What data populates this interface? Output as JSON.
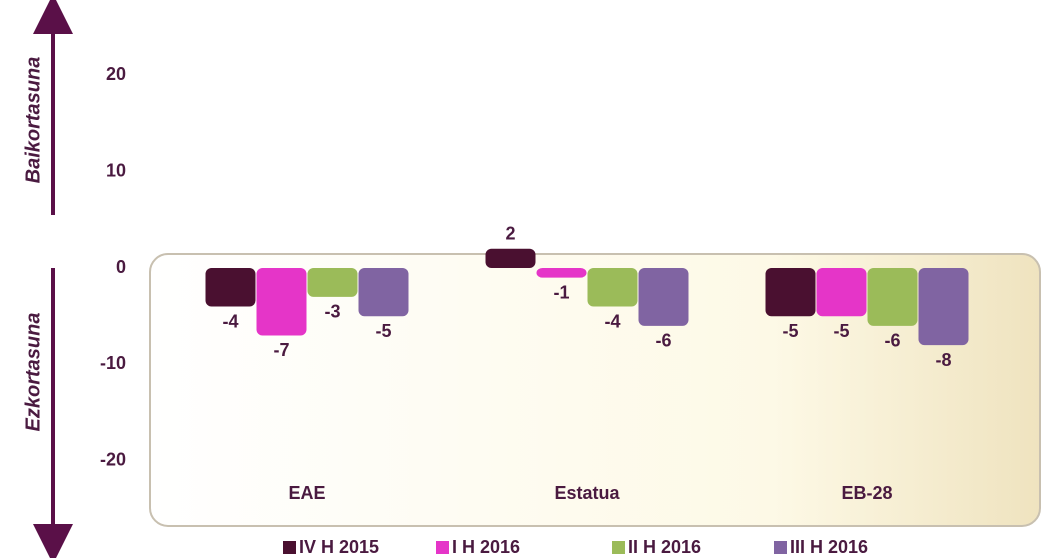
{
  "chart_data": {
    "type": "bar",
    "annotations": [
      "Baikortasuna",
      "Ezkortasuna"
    ],
    "categories": [
      "EAE",
      "Estatua",
      "EB-28"
    ],
    "series": [
      {
        "name": "IV H 2015",
        "color": "#4a1030",
        "values": [
          -4,
          2,
          -5
        ]
      },
      {
        "name": "I H 2016",
        "color": "#e535c8",
        "values": [
          -7,
          -1,
          -5
        ]
      },
      {
        "name": "II H 2016",
        "color": "#9bbb59",
        "values": [
          -3,
          -4,
          -6
        ]
      },
      {
        "name": "III H 2016",
        "color": "#8064a2",
        "values": [
          -5,
          -6,
          -8
        ]
      }
    ],
    "ylim": [
      -25,
      25
    ],
    "yticks": [
      -20,
      -10,
      0,
      10,
      20
    ],
    "grid": false
  }
}
